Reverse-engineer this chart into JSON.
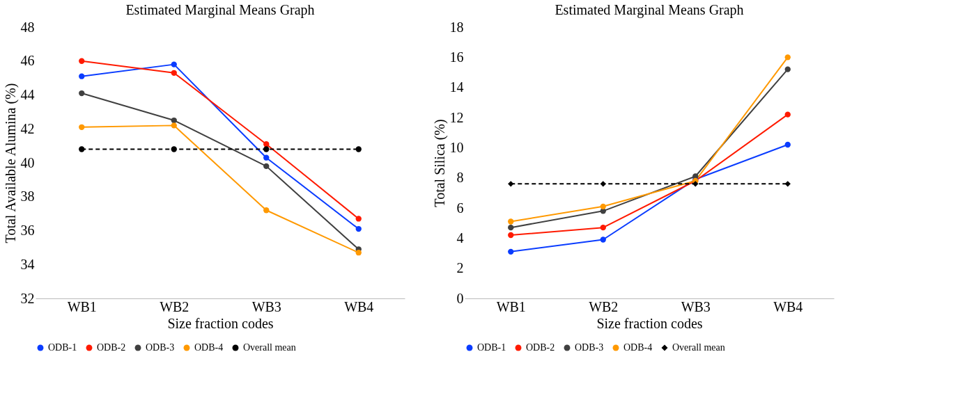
{
  "chart_data": [
    {
      "type": "line",
      "title": "Estimated Marginal Means Graph",
      "xlabel": "Size fraction codes",
      "ylabel": "Total Available Alumina (%)",
      "categories": [
        "WB1",
        "WB2",
        "WB3",
        "WB4"
      ],
      "ylim": [
        32,
        48
      ],
      "yticks": [
        32,
        34,
        36,
        38,
        40,
        42,
        44,
        46,
        48
      ],
      "grid": false,
      "legend": "bottom",
      "marker": "circle",
      "line_style": "solid",
      "series": [
        {
          "name": "ODB-1",
          "color": "#0a3cff",
          "values": [
            45.1,
            45.8,
            40.3,
            36.1
          ]
        },
        {
          "name": "ODB-2",
          "color": "#ff1a00",
          "values": [
            46.0,
            45.3,
            41.1,
            36.7
          ]
        },
        {
          "name": "ODB-3",
          "color": "#404040",
          "values": [
            44.1,
            42.5,
            39.8,
            34.9
          ]
        },
        {
          "name": "ODB-4",
          "color": "#ff9900",
          "values": [
            42.1,
            42.2,
            37.2,
            34.7
          ]
        },
        {
          "name": "Overall mean",
          "color": "#000000",
          "values": [
            40.8,
            40.8,
            40.8,
            40.8
          ],
          "line_style": "dashed",
          "marker": "circle"
        }
      ]
    },
    {
      "type": "line",
      "title": "Estimated Marginal Means Graph",
      "xlabel": "Size fraction codes",
      "ylabel": "Total Silica (%)",
      "categories": [
        "WB1",
        "WB2",
        "WB3",
        "WB4"
      ],
      "ylim": [
        0,
        18
      ],
      "yticks": [
        0,
        2,
        4,
        6,
        8,
        10,
        12,
        14,
        16,
        18
      ],
      "grid": false,
      "legend": "bottom",
      "marker": "circle",
      "line_style": "solid",
      "series": [
        {
          "name": "ODB-1",
          "color": "#0a3cff",
          "values": [
            3.1,
            3.9,
            7.9,
            10.2
          ]
        },
        {
          "name": "ODB-2",
          "color": "#ff1a00",
          "values": [
            4.2,
            4.7,
            7.8,
            12.2
          ]
        },
        {
          "name": "ODB-3",
          "color": "#404040",
          "values": [
            4.7,
            5.8,
            8.1,
            15.2
          ]
        },
        {
          "name": "ODB-4",
          "color": "#ff9900",
          "values": [
            5.1,
            6.1,
            7.8,
            16.0
          ]
        },
        {
          "name": "Overall mean",
          "color": "#000000",
          "values": [
            7.6,
            7.6,
            7.6,
            7.6
          ],
          "line_style": "dashed",
          "marker": "diamond"
        }
      ]
    }
  ]
}
